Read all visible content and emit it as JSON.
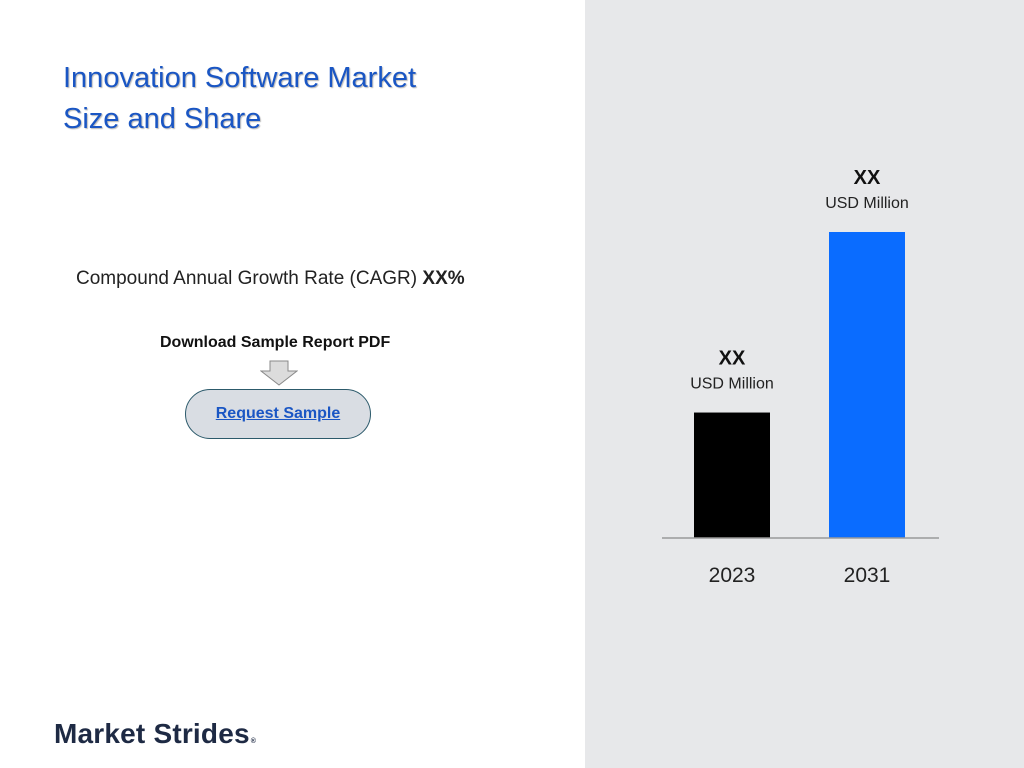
{
  "title": {
    "line1": "Innovation Software Market",
    "line2": "Size and Share"
  },
  "cagr": {
    "label": "Compound Annual Growth Rate (CAGR) ",
    "value": "XX",
    "suffix": "%"
  },
  "download": {
    "label": "Download Sample Report PDF",
    "button_label": "Request Sample"
  },
  "brand": {
    "name": "Market Strides",
    "mark": "®"
  },
  "colors": {
    "title": "#1a56c4",
    "bar_2023": "#000000",
    "bar_2031": "#0a6cff",
    "panel_bg": "#e7e8ea"
  },
  "chart_data": {
    "type": "bar",
    "categories": [
      "2023",
      "2031"
    ],
    "values": [
      41,
      100
    ],
    "value_labels": [
      "XX",
      "XX"
    ],
    "unit_labels": [
      "USD Million",
      "USD Million"
    ],
    "colors": [
      "#000000",
      "#0a6cff"
    ],
    "ylim": [
      0,
      100
    ],
    "grid": false
  }
}
